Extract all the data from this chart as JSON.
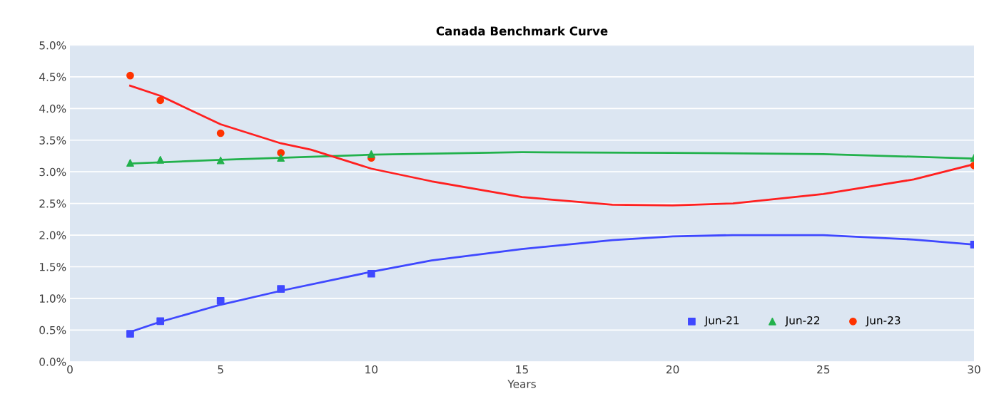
{
  "chart_data": {
    "type": "scatter",
    "title": "Canada Benchmark Curve",
    "xlabel": "Years",
    "xlim": [
      0,
      30
    ],
    "xticks": [
      0,
      5,
      10,
      15,
      20,
      25,
      30
    ],
    "ylim": [
      0,
      5
    ],
    "yticks": [
      {
        "value": 0,
        "label": "0.0%"
      },
      {
        "value": 0.5,
        "label": "0.5%"
      },
      {
        "value": 1,
        "label": "1.0%"
      },
      {
        "value": 1.5,
        "label": "1.5%"
      },
      {
        "value": 2,
        "label": "2.0%"
      },
      {
        "value": 2.5,
        "label": "2.5%"
      },
      {
        "value": 3,
        "label": "3.0%"
      },
      {
        "value": 3.5,
        "label": "3.5%"
      },
      {
        "value": 4,
        "label": "4.0%"
      },
      {
        "value": 4.5,
        "label": "4.5%"
      },
      {
        "value": 5,
        "label": "5.0%"
      }
    ],
    "grid": "y",
    "legend": "bottom right",
    "series": [
      {
        "name": "Jun-21",
        "color": "#3f48ff",
        "marker": "square",
        "x": [
          2,
          3,
          5,
          7,
          10,
          30
        ],
        "values": [
          0.44,
          0.64,
          0.96,
          1.15,
          1.39,
          1.85
        ]
      },
      {
        "name": "Jun-22",
        "color": "#22b14c",
        "marker": "triangle",
        "x": [
          2,
          3,
          5,
          7,
          10,
          30
        ],
        "values": [
          3.14,
          3.19,
          3.18,
          3.22,
          3.28,
          3.22
        ]
      },
      {
        "name": "Jun-23",
        "color": "#ff3300",
        "marker": "circle",
        "x": [
          2,
          3,
          5,
          7,
          10,
          30
        ],
        "values": [
          4.52,
          4.13,
          3.61,
          3.3,
          3.22,
          3.1
        ]
      },
      {
        "type": "line",
        "color": "#3f48ff",
        "x": [
          2,
          3,
          5,
          7,
          10,
          12,
          15,
          18,
          20,
          22,
          25,
          28,
          30
        ],
        "values": [
          0.47,
          0.63,
          0.9,
          1.12,
          1.42,
          1.6,
          1.78,
          1.92,
          1.98,
          2.0,
          2.0,
          1.93,
          1.85
        ]
      },
      {
        "type": "line",
        "color": "#22b14c",
        "x": [
          2,
          5,
          10,
          15,
          20,
          25,
          30
        ],
        "values": [
          3.13,
          3.19,
          3.27,
          3.31,
          3.3,
          3.28,
          3.21
        ]
      },
      {
        "type": "line",
        "color": "#ff2020",
        "x": [
          2,
          3,
          5,
          7,
          8,
          10,
          12,
          15,
          18,
          20,
          22,
          25,
          28,
          30
        ],
        "values": [
          4.36,
          4.2,
          3.75,
          3.45,
          3.35,
          3.05,
          2.85,
          2.6,
          2.48,
          2.47,
          2.5,
          2.65,
          2.88,
          3.12
        ]
      }
    ]
  }
}
